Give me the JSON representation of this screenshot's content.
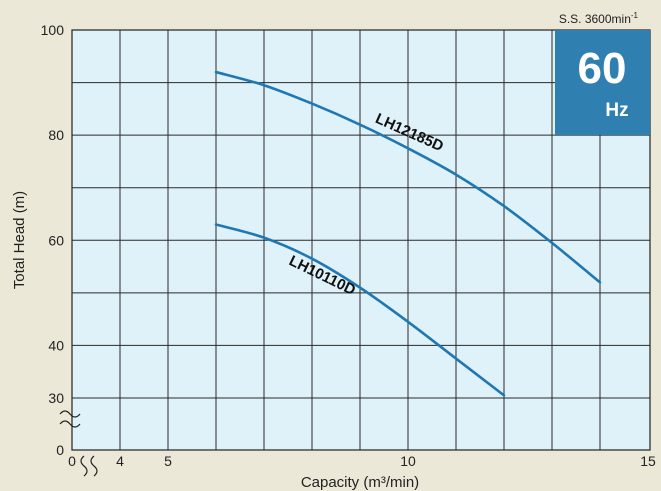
{
  "chart_data": {
    "type": "line",
    "xlabel": "Capacity (m³/min)",
    "ylabel": "Total Head (m)",
    "xlim": [
      0,
      15
    ],
    "ylim": [
      0,
      100
    ],
    "x_ticks": [
      "0",
      "4",
      "5",
      "10",
      "15"
    ],
    "y_ticks": [
      "0",
      "30",
      "40",
      "60",
      "80",
      "100"
    ],
    "axis_breaks": "both axes broken (0 to 4 on x, 0 to 30 on y)",
    "grid": true,
    "series": [
      {
        "name": "LH12185D",
        "x": [
          6,
          7,
          8,
          9,
          10,
          11,
          12,
          13,
          14
        ],
        "y": [
          92,
          89.5,
          86,
          82,
          77.5,
          72.5,
          66.5,
          59.5,
          52
        ]
      },
      {
        "name": "LH10110D",
        "x": [
          6,
          7,
          8,
          9,
          10,
          11,
          12
        ],
        "y": [
          63,
          60.5,
          56.5,
          51,
          44.5,
          37.5,
          30.5
        ]
      }
    ],
    "speed_note": {
      "text": "S.S. 3600min",
      "superscript": "-1"
    },
    "badge": {
      "number": "60",
      "unit": "Hz",
      "color": "#2f7fb0"
    },
    "colors": {
      "plot_background": "#dff1f9",
      "page_background": "#ece8d8",
      "curve": "#1f78b4"
    }
  }
}
